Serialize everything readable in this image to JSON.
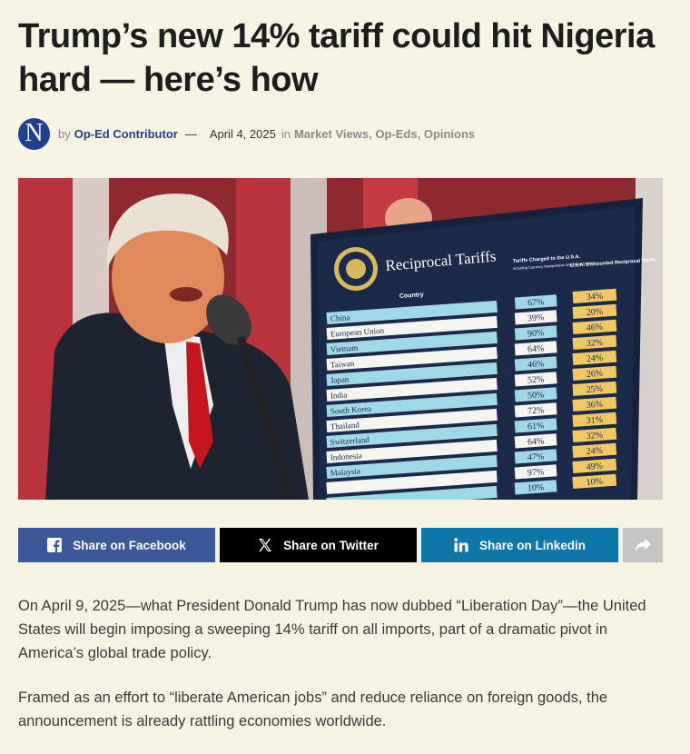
{
  "article": {
    "title": "Trump’s new 14% tariff could hit Nigeria hard — here’s how",
    "avatar_letter": "N",
    "by": "by",
    "author": "Op-Ed Contributor",
    "dash": "—",
    "date": "April 4, 2025",
    "in": "in",
    "categories": [
      "Market Views",
      "Op-Eds",
      "Opinions"
    ],
    "category_sep": ","
  },
  "hero": {
    "board_title": "Reciprocal Tariffs",
    "col_country": "Country",
    "col_charged": "Tariffs Charged to the U.S.A.",
    "col_charged_sub": "Including Currency Manipulation and Trade Barriers",
    "col_reciprocal": "U.S.A. Discounted Reciprocal Tariffs",
    "rows": [
      {
        "country": "China",
        "charged": "67%",
        "reciprocal": "34%"
      },
      {
        "country": "European Union",
        "charged": "39%",
        "reciprocal": "20%"
      },
      {
        "country": "Vietnam",
        "charged": "90%",
        "reciprocal": "46%"
      },
      {
        "country": "Taiwan",
        "charged": "64%",
        "reciprocal": "32%"
      },
      {
        "country": "Japan",
        "charged": "46%",
        "reciprocal": "24%"
      },
      {
        "country": "India",
        "charged": "52%",
        "reciprocal": "26%"
      },
      {
        "country": "South Korea",
        "charged": "50%",
        "reciprocal": "25%"
      },
      {
        "country": "Thailand",
        "charged": "72%",
        "reciprocal": "36%"
      },
      {
        "country": "Switzerland",
        "charged": "61%",
        "reciprocal": "31%"
      },
      {
        "country": "Indonesia",
        "charged": "64%",
        "reciprocal": "32%"
      },
      {
        "country": "Malaysia",
        "charged": "47%",
        "reciprocal": "24%"
      },
      {
        "country": "",
        "charged": "97%",
        "reciprocal": "49%"
      },
      {
        "country": "",
        "charged": "10%",
        "reciprocal": "10%"
      }
    ]
  },
  "share": {
    "facebook": "Share on Facebook",
    "twitter": "Share on Twitter",
    "linkedin": "Share on Linkedin",
    "icons": [
      "facebook-icon",
      "x-icon",
      "linkedin-icon",
      "share-arrow-icon"
    ],
    "colors": {
      "facebook": "#3b5998",
      "twitter": "#000000",
      "linkedin": "#0e76a8",
      "more": "#c4c4c4"
    }
  },
  "body": {
    "paragraphs": [
      "On April 9, 2025—what President Donald Trump has now dubbed “Liberation Day”—the United States will begin imposing a sweeping 14% tariff on all imports, part of a dramatic pivot in America’s global trade policy.",
      "Framed as an effort to “liberate American jobs” and reduce reliance on foreign goods, the announcement is already rattling economies worldwide."
    ]
  }
}
